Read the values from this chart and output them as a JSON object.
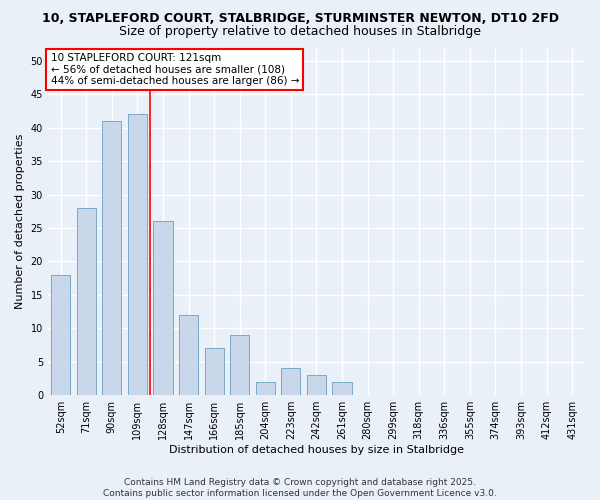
{
  "title1": "10, STAPLEFORD COURT, STALBRIDGE, STURMINSTER NEWTON, DT10 2FD",
  "title2": "Size of property relative to detached houses in Stalbridge",
  "xlabel": "Distribution of detached houses by size in Stalbridge",
  "ylabel": "Number of detached properties",
  "bar_labels": [
    "52sqm",
    "71sqm",
    "90sqm",
    "109sqm",
    "128sqm",
    "147sqm",
    "166sqm",
    "185sqm",
    "204sqm",
    "223sqm",
    "242sqm",
    "261sqm",
    "280sqm",
    "299sqm",
    "318sqm",
    "336sqm",
    "355sqm",
    "374sqm",
    "393sqm",
    "412sqm",
    "431sqm"
  ],
  "bar_values": [
    18,
    28,
    41,
    42,
    26,
    12,
    7,
    9,
    2,
    4,
    3,
    2,
    0,
    0,
    0,
    0,
    0,
    0,
    0,
    0,
    0
  ],
  "bar_color": "#c8d8ea",
  "bar_edgecolor": "#7aaac8",
  "annotation_text": "10 STAPLEFORD COURT: 121sqm\n← 56% of detached houses are smaller (108)\n44% of semi-detached houses are larger (86) →",
  "annotation_box_color": "white",
  "annotation_box_edgecolor": "red",
  "vline_color": "red",
  "vline_x": 3.5,
  "ylim": [
    0,
    52
  ],
  "yticks": [
    0,
    5,
    10,
    15,
    20,
    25,
    30,
    35,
    40,
    45,
    50
  ],
  "footer": "Contains HM Land Registry data © Crown copyright and database right 2025.\nContains public sector information licensed under the Open Government Licence v3.0.",
  "bg_color": "#eaf0f8",
  "grid_color": "#ffffff",
  "title_fontsize": 9,
  "subtitle_fontsize": 9,
  "label_fontsize": 8,
  "tick_fontsize": 7,
  "annotation_fontsize": 7.5,
  "footer_fontsize": 6.5
}
